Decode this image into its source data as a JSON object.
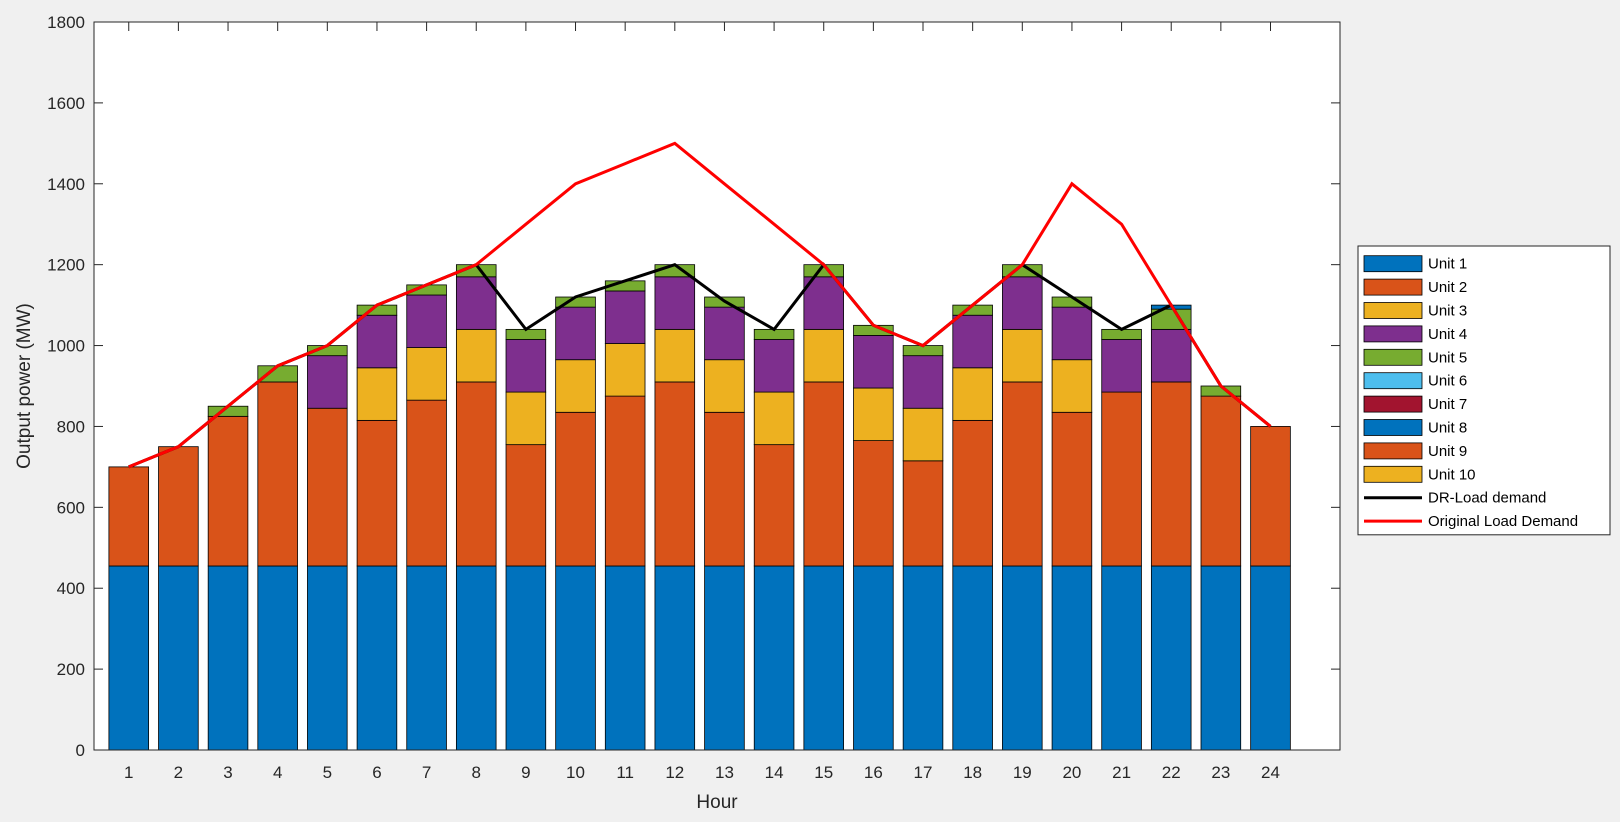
{
  "chart_data": {
    "type": "bar",
    "stacked": true,
    "title": "",
    "xlabel": "Hour",
    "ylabel": "Output power (MW)",
    "xlim": [
      0.3,
      25.4
    ],
    "ylim": [
      0,
      1800
    ],
    "yticks": [
      0,
      200,
      400,
      600,
      800,
      1000,
      1200,
      1400,
      1600,
      1800
    ],
    "categories": [
      "1",
      "2",
      "3",
      "4",
      "5",
      "6",
      "7",
      "8",
      "9",
      "10",
      "11",
      "12",
      "13",
      "14",
      "15",
      "16",
      "17",
      "18",
      "19",
      "20",
      "21",
      "22",
      "23",
      "24"
    ],
    "legend_position": "right",
    "series": [
      {
        "name": "Unit 1",
        "color": "#0072bd",
        "values": [
          455,
          455,
          455,
          455,
          455,
          455,
          455,
          455,
          455,
          455,
          455,
          455,
          455,
          455,
          455,
          455,
          455,
          455,
          455,
          455,
          455,
          455,
          455,
          455
        ]
      },
      {
        "name": "Unit 2",
        "color": "#d95319",
        "values": [
          245,
          295,
          370,
          455,
          390,
          360,
          410,
          455,
          300,
          380,
          420,
          455,
          380,
          300,
          455,
          310,
          260,
          360,
          455,
          380,
          430,
          455,
          420,
          345
        ]
      },
      {
        "name": "Unit 3",
        "color": "#edb120",
        "values": [
          0,
          0,
          0,
          0,
          0,
          130,
          130,
          130,
          130,
          130,
          130,
          130,
          130,
          130,
          130,
          130,
          130,
          130,
          130,
          130,
          0,
          0,
          0,
          0
        ]
      },
      {
        "name": "Unit 4",
        "color": "#7e2f8e",
        "values": [
          0,
          0,
          0,
          0,
          130,
          130,
          130,
          130,
          130,
          130,
          130,
          130,
          130,
          130,
          130,
          130,
          130,
          130,
          130,
          130,
          130,
          130,
          0,
          0
        ]
      },
      {
        "name": "Unit 5",
        "color": "#77ac30",
        "values": [
          0,
          0,
          25,
          40,
          25,
          25,
          25,
          30,
          25,
          25,
          25,
          30,
          25,
          25,
          30,
          25,
          25,
          25,
          30,
          25,
          25,
          50,
          25,
          0
        ]
      },
      {
        "name": "Unit 6",
        "color": "#4dbeee",
        "values": [
          0,
          0,
          0,
          0,
          0,
          0,
          0,
          0,
          0,
          0,
          0,
          0,
          0,
          0,
          0,
          0,
          0,
          0,
          0,
          0,
          0,
          0,
          0,
          0
        ]
      },
      {
        "name": "Unit 7",
        "color": "#a2142f",
        "values": [
          0,
          0,
          0,
          0,
          0,
          0,
          0,
          0,
          0,
          0,
          0,
          0,
          0,
          0,
          0,
          0,
          0,
          0,
          0,
          0,
          0,
          0,
          0,
          0
        ]
      },
      {
        "name": "Unit 8",
        "color": "#0072bd",
        "values": [
          0,
          0,
          0,
          0,
          0,
          0,
          0,
          0,
          0,
          0,
          0,
          0,
          0,
          0,
          0,
          0,
          0,
          0,
          0,
          0,
          0,
          10,
          0,
          0
        ]
      },
      {
        "name": "Unit 9",
        "color": "#d95319",
        "values": [
          0,
          0,
          0,
          0,
          0,
          0,
          0,
          0,
          0,
          0,
          0,
          0,
          0,
          0,
          0,
          0,
          0,
          0,
          0,
          0,
          0,
          0,
          0,
          0
        ]
      },
      {
        "name": "Unit 10",
        "color": "#edb120",
        "values": [
          0,
          0,
          0,
          0,
          0,
          0,
          0,
          0,
          0,
          0,
          0,
          0,
          0,
          0,
          0,
          0,
          0,
          0,
          0,
          0,
          0,
          0,
          0,
          0
        ]
      }
    ],
    "lines": [
      {
        "name": "DR-Load demand",
        "color": "#000000",
        "values": [
          700,
          750,
          850,
          950,
          1000,
          1100,
          1150,
          1200,
          1040,
          1120,
          1160,
          1200,
          1110,
          1040,
          1200,
          1050,
          1000,
          1100,
          1200,
          1120,
          1040,
          1100,
          900,
          800
        ]
      },
      {
        "name": "Original Load Demand",
        "color": "#ff0000",
        "values": [
          700,
          750,
          850,
          950,
          1000,
          1100,
          1150,
          1200,
          1300,
          1400,
          1450,
          1500,
          1400,
          1300,
          1200,
          1050,
          1000,
          1100,
          1200,
          1400,
          1300,
          1100,
          900,
          800
        ]
      }
    ]
  }
}
